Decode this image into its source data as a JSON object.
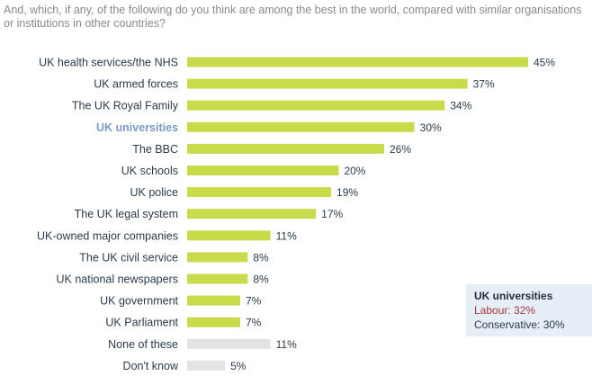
{
  "question": "And, which, if any, of the following do you think are among the best in the world, compared with similar organisations or institutions in other countries?",
  "chart_data": {
    "type": "bar",
    "orientation": "horizontal",
    "title": "And, which, if any, of the following do you think are among the best in the world, compared with similar organisations or institutions in other countries?",
    "unit": "%",
    "xlim": [
      0,
      45
    ],
    "categories": [
      "UK health services/the NHS",
      "UK armed forces",
      "The UK Royal Family",
      "UK universities",
      "The BBC",
      "UK schools",
      "UK police",
      "The UK legal system",
      "UK-owned major companies",
      "The UK civil service",
      "UK national newspapers",
      "UK government",
      "UK Parliament",
      "None of these",
      "Don't know"
    ],
    "values": [
      45,
      37,
      34,
      30,
      26,
      20,
      19,
      17,
      11,
      8,
      8,
      7,
      7,
      11,
      5
    ],
    "value_labels": [
      "45%",
      "37%",
      "34%",
      "30%",
      "26%",
      "20%",
      "19%",
      "17%",
      "11%",
      "8%",
      "8%",
      "7%",
      "7%",
      "11%",
      "5%"
    ],
    "highlight_category": "UK universities",
    "neutral_categories": [
      "None of these",
      "Don't know"
    ],
    "colors": {
      "bar": "#c9db4a",
      "neutral_bar": "#e3e3e3",
      "highlight_label": "#7b9ac3"
    }
  },
  "callout": {
    "title": "UK universities",
    "labour": "Labour: 32%",
    "conservative": "Conservative: 30%"
  }
}
